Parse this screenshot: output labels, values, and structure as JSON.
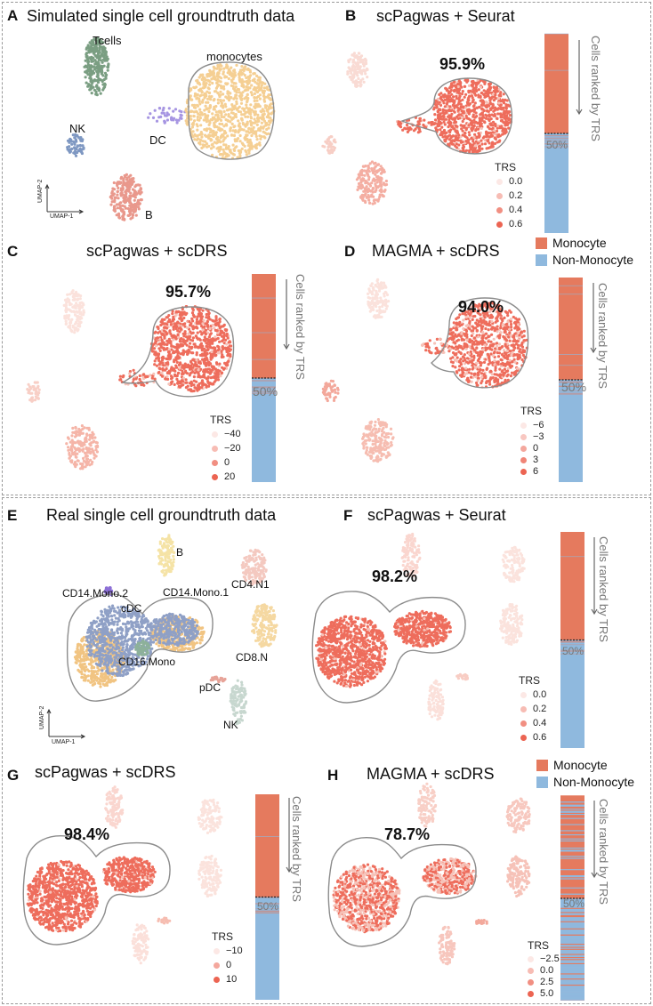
{
  "colors": {
    "monocyte": "#e57a5e",
    "non_monocyte": "#8fb9de",
    "tcells": "#7a9e82",
    "nk": "#7f98c2",
    "dc": "#a695e2",
    "monocytes_gt": "#f5cf93",
    "b": "#e9988c",
    "trs_high": "#ef6a5a",
    "trs_low": "#f9dcd6"
  },
  "panels": {
    "A": {
      "letter": "A",
      "title": "Simulated single cell groundtruth data",
      "labels": {
        "tcells": "Tcells",
        "monocytes": "monocytes",
        "nk": "NK",
        "dc": "DC",
        "b": "B"
      },
      "axis": {
        "x": "UMAP-1",
        "y": "UMAP-2"
      }
    },
    "B": {
      "letter": "B",
      "title": "scPagwas + Seurat",
      "percent": "95.9%",
      "trs_title": "TRS",
      "trs_values": [
        "0.0",
        "0.2",
        "0.4",
        "0.6"
      ],
      "bar_label": "Cells ranked by TRS",
      "bar_mid": "50%",
      "mono_fraction": 0.959
    },
    "C": {
      "letter": "C",
      "title": "scPagwas + scDRS",
      "percent": "95.7%",
      "trs_title": "TRS",
      "trs_values": [
        "−40",
        "−20",
        "0",
        "20"
      ],
      "bar_label": "Cells ranked by TRS",
      "bar_mid": "50%",
      "mono_fraction": 0.957
    },
    "D": {
      "letter": "D",
      "title": "MAGMA + scDRS",
      "percent": "94.0%",
      "trs_title": "TRS",
      "trs_values": [
        "−6",
        "−3",
        "0",
        "3",
        "6"
      ],
      "bar_label": "Cells ranked by TRS",
      "bar_mid": "50%",
      "mono_fraction": 0.94
    },
    "E": {
      "letter": "E",
      "title": "Real single cell groundtruth data",
      "labels": {
        "b": "B",
        "cd4n1": "CD4.N1",
        "cd14mono2": "CD14.Mono.2",
        "cdc": "cDC",
        "cd14mono1": "CD14.Mono.1",
        "cd8n": "CD8.N",
        "cd16mono": "CD16.Mono",
        "pdc": "pDC",
        "nk": "NK"
      },
      "axis": {
        "x": "UMAP-1",
        "y": "UMAP-2"
      }
    },
    "F": {
      "letter": "F",
      "title": "scPagwas + Seurat",
      "percent": "98.2%",
      "trs_title": "TRS",
      "trs_values": [
        "0.0",
        "0.2",
        "0.4",
        "0.6"
      ],
      "bar_label": "Cells ranked by TRS",
      "bar_mid": "50%",
      "mono_fraction": 0.982
    },
    "G": {
      "letter": "G",
      "title": "scPagwas + scDRS",
      "percent": "98.4%",
      "trs_title": "TRS",
      "trs_values": [
        "−10",
        "0",
        "10"
      ],
      "bar_label": "Cells ranked by TRS",
      "bar_mid": "50%",
      "mono_fraction": 0.984
    },
    "H": {
      "letter": "H",
      "title": "MAGMA + scDRS",
      "percent": "78.7%",
      "trs_title": "TRS",
      "trs_values": [
        "−2.5",
        "0.0",
        "2.5",
        "5.0"
      ],
      "bar_label": "Cells ranked by TRS",
      "bar_mid": "50%",
      "mono_fraction": 0.787
    }
  },
  "legend": {
    "monocyte": "Monocyte",
    "non_monocyte": "Non-Monocyte"
  }
}
